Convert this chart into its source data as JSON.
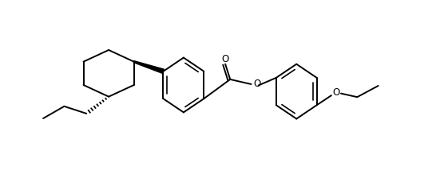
{
  "background_color": "#ffffff",
  "line_color": "#000000",
  "line_width": 1.4,
  "figsize": [
    5.61,
    2.14
  ],
  "dpi": 100,
  "xlim": [
    0,
    11
  ],
  "ylim": [
    0,
    4.2
  ]
}
